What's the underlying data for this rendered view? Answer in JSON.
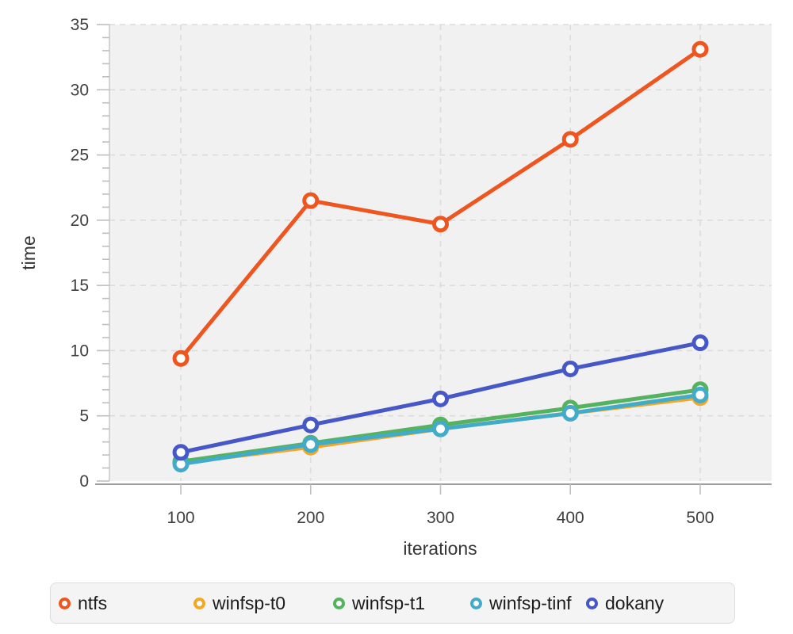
{
  "chart_data": {
    "type": "line",
    "title": "",
    "xlabel": "iterations",
    "ylabel": "time",
    "x": [
      100,
      200,
      300,
      400,
      500
    ],
    "xlim": [
      45,
      555
    ],
    "ylim": [
      0,
      35
    ],
    "xticks": [
      100,
      200,
      300,
      400,
      500
    ],
    "yticks": [
      0,
      5,
      10,
      15,
      20,
      25,
      30,
      35
    ],
    "y_minor_tick_step": 1,
    "grid": true,
    "grid_style": "dashed",
    "legend_position": "bottom",
    "marker": "open-circle",
    "colors": {
      "plot_background": "#f1f1f1",
      "grid_line": "#dcdcdc",
      "tick_mark": "#bfbfbf",
      "y_axis_line": "#c9c9c9",
      "x_axis_line": "#9e9e9e",
      "tick_label": "#3f3f3f",
      "axis_title": "#363636",
      "legend_text": "#1c1c1c",
      "legend_background": "#f4f4f4",
      "legend_border": "#dcdcdc"
    },
    "series": [
      {
        "name": "ntfs",
        "color": "#ef551f",
        "values": [
          9.4,
          21.5,
          19.7,
          26.2,
          33.1
        ]
      },
      {
        "name": "winfsp-t0",
        "color": "#f5a623",
        "values": [
          1.4,
          2.6,
          4.0,
          5.2,
          6.4
        ]
      },
      {
        "name": "winfsp-t1",
        "color": "#55b35f",
        "values": [
          1.5,
          2.9,
          4.3,
          5.6,
          7.0
        ]
      },
      {
        "name": "winfsp-tinf",
        "color": "#41abc9",
        "values": [
          1.3,
          2.8,
          4.0,
          5.2,
          6.6
        ]
      },
      {
        "name": "dokany",
        "color": "#4657c8",
        "values": [
          2.2,
          4.3,
          6.3,
          8.6,
          10.6
        ]
      }
    ]
  }
}
